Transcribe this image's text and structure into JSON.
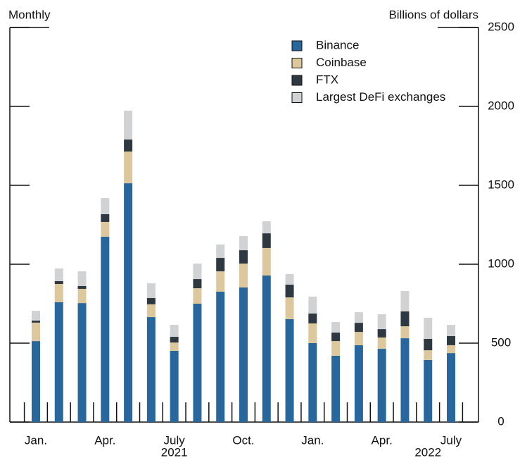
{
  "chart_data": {
    "type": "stacked_bar",
    "y_label_left": "Monthly",
    "y_label_right": "Billions of dollars",
    "categories": [
      "Jan.",
      null,
      null,
      "Apr.",
      null,
      null,
      "July",
      null,
      null,
      "Oct.",
      null,
      null,
      "Jan.",
      null,
      null,
      "Apr.",
      null,
      null,
      "July"
    ],
    "year_categories": [
      null,
      null,
      null,
      null,
      null,
      null,
      "2021",
      null,
      null,
      null,
      null,
      null,
      null,
      null,
      null,
      null,
      null,
      "2022",
      null
    ],
    "series": [
      {
        "name": "Binance",
        "color": "#28679b",
        "values": [
          513,
          759,
          754,
          1174,
          1513,
          665,
          451,
          750,
          826,
          853,
          929,
          652,
          500,
          420,
          487,
          464,
          531,
          393,
          437
        ]
      },
      {
        "name": "Coinbase",
        "color": "#dcc89c",
        "values": [
          117,
          116,
          90,
          94,
          201,
          81,
          53,
          98,
          129,
          151,
          174,
          138,
          125,
          93,
          84,
          72,
          76,
          62,
          50
        ]
      },
      {
        "name": "FTX",
        "color": "#2d3841",
        "values": [
          13,
          18,
          18,
          49,
          76,
          40,
          36,
          58,
          85,
          85,
          93,
          81,
          63,
          54,
          58,
          53,
          94,
          72,
          58
        ]
      },
      {
        "name": "Largest DeFi exchanges",
        "color": "#d0d2d3",
        "values": [
          62,
          80,
          93,
          103,
          183,
          93,
          76,
          98,
          85,
          90,
          76,
          67,
          107,
          67,
          67,
          94,
          129,
          134,
          71
        ]
      }
    ],
    "ylim": [
      0,
      2500
    ],
    "yticks": [
      0,
      500,
      1000,
      1500,
      2000,
      2500
    ],
    "legend": "top-right"
  }
}
